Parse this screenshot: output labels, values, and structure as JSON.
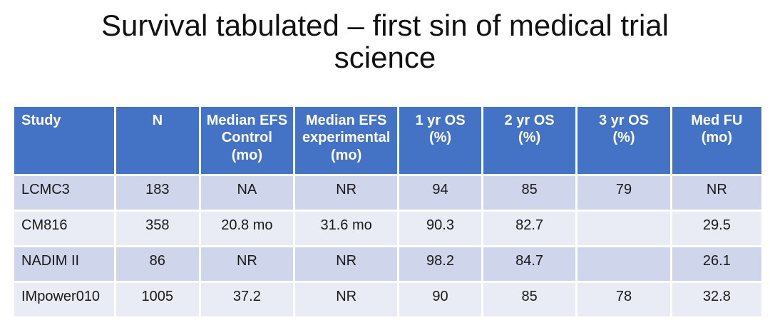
{
  "slide": {
    "title": "Survival tabulated – first sin of medical trial science"
  },
  "table": {
    "columns": [
      "Study",
      "N",
      "Median EFS\nControl\n(mo)",
      "Median EFS\nexperimental\n(mo)",
      "1 yr OS\n(%)",
      "2 yr OS\n(%)",
      "3 yr OS\n(%)",
      "Med FU\n(mo)"
    ],
    "rows": [
      [
        "LCMC3",
        "183",
        "NA",
        "NR",
        "94",
        "85",
        "79",
        "NR"
      ],
      [
        "CM816",
        "358",
        "20.8 mo",
        "31.6 mo",
        "90.3",
        "82.7",
        "",
        "29.5"
      ],
      [
        "NADIM II",
        "86",
        "NR",
        "NR",
        "98.2",
        "84.7",
        "",
        "26.1"
      ],
      [
        "IMpower010",
        "1005",
        "37.2",
        "NR",
        "90",
        "85",
        "78",
        "32.8"
      ]
    ],
    "colors": {
      "header_bg": "#4472C4",
      "header_text": "#FFFFFF",
      "band_dark": "#CFD5EA",
      "band_light": "#E9EBF5",
      "body_text": "#1A1A1A",
      "gridline": "#FFFFFF"
    }
  }
}
